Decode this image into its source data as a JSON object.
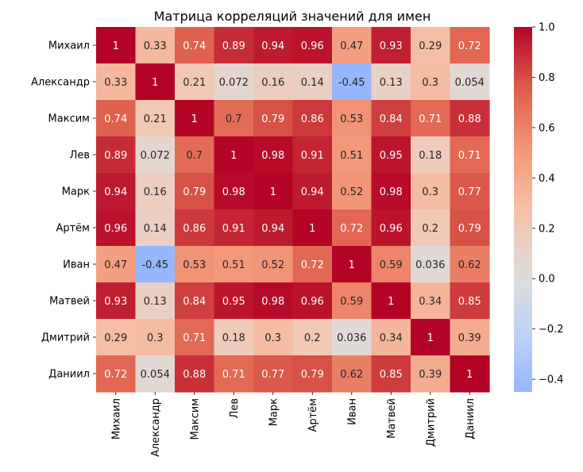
{
  "chart_data": {
    "type": "heatmap",
    "title": "Матрица корреляций значений для имен",
    "xlabel": "",
    "ylabel": "",
    "labels": [
      "Михаил",
      "Александр",
      "Максим",
      "Лев",
      "Марк",
      "Артём",
      "Иван",
      "Матвей",
      "Дмитрий",
      "Даниил"
    ],
    "matrix": [
      [
        "1",
        "0.33",
        "0.74",
        "0.89",
        "0.94",
        "0.96",
        "0.47",
        "0.93",
        "0.29",
        "0.72"
      ],
      [
        "0.33",
        "1",
        "0.21",
        "0.072",
        "0.16",
        "0.14",
        "-0.45",
        "0.13",
        "0.3",
        "0.054"
      ],
      [
        "0.74",
        "0.21",
        "1",
        "0.7",
        "0.79",
        "0.86",
        "0.53",
        "0.84",
        "0.71",
        "0.88"
      ],
      [
        "0.89",
        "0.072",
        "0.7",
        "1",
        "0.98",
        "0.91",
        "0.51",
        "0.95",
        "0.18",
        "0.71"
      ],
      [
        "0.94",
        "0.16",
        "0.79",
        "0.98",
        "1",
        "0.94",
        "0.52",
        "0.98",
        "0.3",
        "0.77"
      ],
      [
        "0.96",
        "0.14",
        "0.86",
        "0.91",
        "0.94",
        "1",
        "0.72",
        "0.96",
        "0.2",
        "0.79"
      ],
      [
        "0.47",
        "-0.45",
        "0.53",
        "0.51",
        "0.52",
        "0.72",
        "1",
        "0.59",
        "0.036",
        "0.62"
      ],
      [
        "0.93",
        "0.13",
        "0.84",
        "0.95",
        "0.98",
        "0.96",
        "0.59",
        "1",
        "0.34",
        "0.85"
      ],
      [
        "0.29",
        "0.3",
        "0.71",
        "0.18",
        "0.3",
        "0.2",
        "0.036",
        "0.34",
        "1",
        "0.39"
      ],
      [
        "0.72",
        "0.054",
        "0.88",
        "0.71",
        "0.77",
        "0.79",
        "0.62",
        "0.85",
        "0.39",
        "1"
      ]
    ],
    "colormap": "coolwarm",
    "colorbar": {
      "range": [
        -0.45,
        1.0
      ],
      "ticks": [
        "−0.4",
        "−0.2",
        "0.0",
        "0.2",
        "0.4",
        "0.6",
        "0.8",
        "1.0"
      ],
      "tick_values": [
        -0.4,
        -0.2,
        0.0,
        0.2,
        0.4,
        0.6,
        0.8,
        1.0
      ],
      "position": "right"
    },
    "grid": false
  }
}
